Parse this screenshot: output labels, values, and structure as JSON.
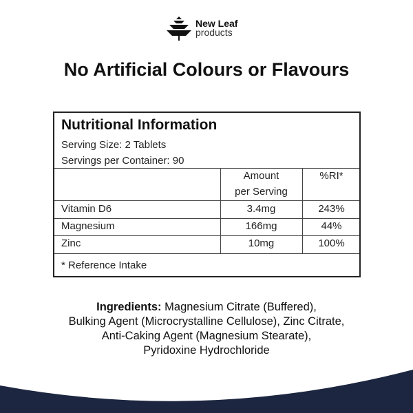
{
  "brand": {
    "name": "New Leaf",
    "sub": "products"
  },
  "headline": "No Artificial Colours or Flavours",
  "table": {
    "title": "Nutritional Information",
    "serving_size": "Serving Size: 2 Tablets",
    "servings": "Servings per Container: 90",
    "col_amount_1": "Amount",
    "col_amount_2": "per Serving",
    "col_ri": "%RI*",
    "rows": [
      {
        "name": "Vitamin D6",
        "amount": "3.4mg",
        "ri": "243%"
      },
      {
        "name": "Magnesium",
        "amount": "166mg",
        "ri": "44%"
      },
      {
        "name": "Zinc",
        "amount": "10mg",
        "ri": "100%"
      }
    ],
    "footnote": "* Reference Intake"
  },
  "ingredients": {
    "label": "Ingredients:",
    "line1": " Magnesium Citrate (Buffered),",
    "line2": "Bulking Agent (Microcrystalline Cellulose), Zinc Citrate,",
    "line3": "Anti-Caking Agent (Magnesium Stearate),",
    "line4": "Pyridoxine Hydrochloride"
  },
  "colors": {
    "wave": "#1c2640"
  }
}
